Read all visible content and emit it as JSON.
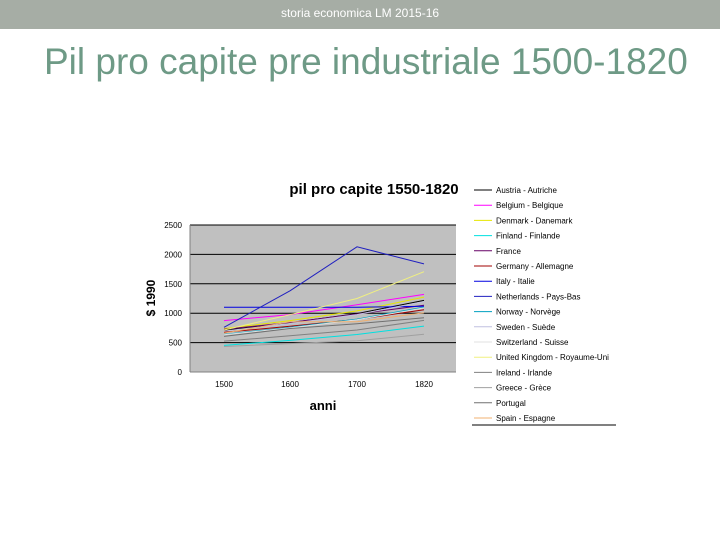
{
  "header": {
    "text": "storia economica LM  2015-16"
  },
  "slide": {
    "title": "Pil pro capite pre industriale 1500-1820"
  },
  "colors": {
    "header_bg": "#a6ada5",
    "title": "#6e9a86",
    "plot_bg": "#c0c0c0"
  },
  "chart_data": {
    "type": "line",
    "title": "pil pro capite 1550-1820",
    "xlabel": "anni",
    "ylabel": "$ 1990",
    "x": [
      "1500",
      "1600",
      "1700",
      "1820"
    ],
    "ylim": [
      0,
      2500
    ],
    "yticks": [
      "0",
      "500",
      "1000",
      "1500",
      "2000",
      "2500"
    ],
    "grid": true,
    "legend_position": "right",
    "series": [
      {
        "name": "Austria - Autriche",
        "color": "#000000",
        "values": [
          707,
          837,
          993,
          1218
        ]
      },
      {
        "name": "Belgium - Belgique",
        "color": "#ff00ff",
        "values": [
          875,
          976,
          1144,
          1319
        ]
      },
      {
        "name": "Denmark - Danemark",
        "color": "#e6e600",
        "values": [
          738,
          875,
          1039,
          1274
        ]
      },
      {
        "name": "Finland - Finlande",
        "color": "#00e0e0",
        "values": [
          453,
          538,
          638,
          781
        ]
      },
      {
        "name": "France",
        "color": "#660066",
        "values": [
          727,
          841,
          986,
          1135
        ]
      },
      {
        "name": "Germany - Allemagne",
        "color": "#a00000",
        "values": [
          676,
          777,
          894,
          1058
        ]
      },
      {
        "name": "Italy - Italie",
        "color": "#0000e0",
        "values": [
          1100,
          1100,
          1100,
          1117
        ]
      },
      {
        "name": "Netherlands - Pays-Bas",
        "color": "#2020c0",
        "values": [
          761,
          1381,
          2130,
          1838
        ]
      },
      {
        "name": "Norway - Norvège",
        "color": "#00a0c0",
        "values": [
          640,
          760,
          900,
          1104
        ]
      },
      {
        "name": "Sweden - Suède",
        "color": "#c0c0e0",
        "values": [
          695,
          824,
          977,
          1198
        ]
      },
      {
        "name": "Switzerland - Suisse",
        "color": "#e0e0e0",
        "values": [
          632,
          750,
          890,
          1090
        ]
      },
      {
        "name": "United Kingdom - Royaume-Uni",
        "color": "#f0f080",
        "values": [
          714,
          974,
          1250,
          1706
        ]
      },
      {
        "name": "Ireland - Irlande",
        "color": "#808080",
        "values": [
          526,
          615,
          715,
          877
        ]
      },
      {
        "name": "Greece - Grèce",
        "color": "#a0a0a0",
        "values": [
          433,
          483,
          530,
          641
        ]
      },
      {
        "name": "Portugal",
        "color": "#707070",
        "values": [
          606,
          740,
          819,
          923
        ]
      },
      {
        "name": "Spain - Espagne",
        "color": "#f0b070",
        "values": [
          661,
          853,
          853,
          1008
        ]
      }
    ]
  }
}
